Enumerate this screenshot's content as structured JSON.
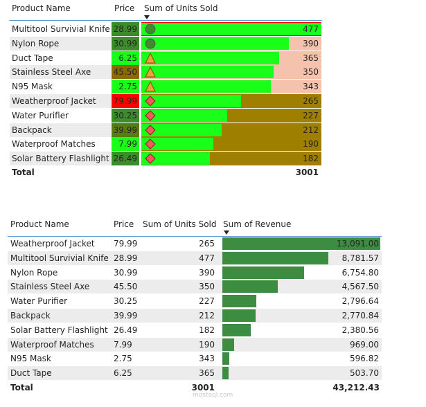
{
  "table1": {
    "headers": {
      "product": "Product Name",
      "price": "Price",
      "units": "Sum of Units Sold"
    },
    "rows": [
      {
        "product": "Multitool Survivial Knife",
        "price": "28.99",
        "units": "477",
        "units_val": 477,
        "price_color": "#3c8c2c",
        "bg": "#ff0000",
        "icon": "circle-icon"
      },
      {
        "product": "Nylon Rope",
        "price": "30.99",
        "units": "390",
        "units_val": 390,
        "price_color": "#3c8c2c",
        "bg": "#f4c2ad",
        "icon": "circle-icon"
      },
      {
        "product": "Duct Tape",
        "price": "6.25",
        "units": "365",
        "units_val": 365,
        "price_color": "#19ff19",
        "bg": "#f4c2ad",
        "icon": "triangle-icon"
      },
      {
        "product": "Stainless Steel Axe",
        "price": "45.50",
        "units": "350",
        "units_val": 350,
        "price_color": "#8b6a00",
        "bg": "#f4c2ad",
        "icon": "triangle-icon"
      },
      {
        "product": "N95 Mask",
        "price": "2.75",
        "units": "343",
        "units_val": 343,
        "price_color": "#19ff19",
        "bg": "#f4c2ad",
        "icon": "triangle-icon"
      },
      {
        "product": "Weatherproof Jacket",
        "price": "79.99",
        "units": "265",
        "units_val": 265,
        "price_color": "#ff0000",
        "bg": "#9e7f00",
        "icon": "diamond-icon"
      },
      {
        "product": "Water Purifier",
        "price": "30.25",
        "units": "227",
        "units_val": 227,
        "price_color": "#3c8c2c",
        "bg": "#9e7f00",
        "icon": "diamond-icon"
      },
      {
        "product": "Backpack",
        "price": "39.99",
        "units": "212",
        "units_val": 212,
        "price_color": "#5b7a16",
        "bg": "#9e7f00",
        "icon": "diamond-icon"
      },
      {
        "product": "Waterproof Matches",
        "price": "7.99",
        "units": "190",
        "units_val": 190,
        "price_color": "#19ff19",
        "bg": "#9e7f00",
        "icon": "diamond-icon"
      },
      {
        "product": "Solar Battery Flashlight",
        "price": "26.49",
        "units": "182",
        "units_val": 182,
        "price_color": "#3c8c2c",
        "bg": "#9e7f00",
        "icon": "diamond-icon"
      }
    ],
    "total_label": "Total",
    "total_units": "3001"
  },
  "table2": {
    "headers": {
      "product": "Product Name",
      "price": "Price",
      "units": "Sum of Units Sold",
      "revenue": "Sum of Revenue"
    },
    "rows": [
      {
        "product": "Weatherproof Jacket",
        "price": "79.99",
        "units": "265",
        "revenue": "13,091.00",
        "revenue_val": 13091.0
      },
      {
        "product": "Multitool Survivial Knife",
        "price": "28.99",
        "units": "477",
        "revenue": "8,781.57",
        "revenue_val": 8781.57
      },
      {
        "product": "Nylon Rope",
        "price": "30.99",
        "units": "390",
        "revenue": "6,754.80",
        "revenue_val": 6754.8
      },
      {
        "product": "Stainless Steel Axe",
        "price": "45.50",
        "units": "350",
        "revenue": "4,567.50",
        "revenue_val": 4567.5
      },
      {
        "product": "Water Purifier",
        "price": "30.25",
        "units": "227",
        "revenue": "2,796.64",
        "revenue_val": 2796.64
      },
      {
        "product": "Backpack",
        "price": "39.99",
        "units": "212",
        "revenue": "2,770.84",
        "revenue_val": 2770.84
      },
      {
        "product": "Solar Battery Flashlight",
        "price": "26.49",
        "units": "182",
        "revenue": "2,380.56",
        "revenue_val": 2380.56
      },
      {
        "product": "Waterproof Matches",
        "price": "7.99",
        "units": "190",
        "revenue": "969.00",
        "revenue_val": 969.0
      },
      {
        "product": "N95 Mask",
        "price": "2.75",
        "units": "343",
        "revenue": "596.82",
        "revenue_val": 596.82
      },
      {
        "product": "Duct Tape",
        "price": "6.25",
        "units": "365",
        "revenue": "503.70",
        "revenue_val": 503.7
      }
    ],
    "total_label": "Total",
    "total_units": "3001",
    "total_revenue": "43,212.43"
  },
  "colors": {
    "units_bar": "#19ff19",
    "revenue_bar": "#3c8c42",
    "accent": "#5b9bd5",
    "stripe": "#ececec"
  },
  "watermark": "mostaql.com"
}
